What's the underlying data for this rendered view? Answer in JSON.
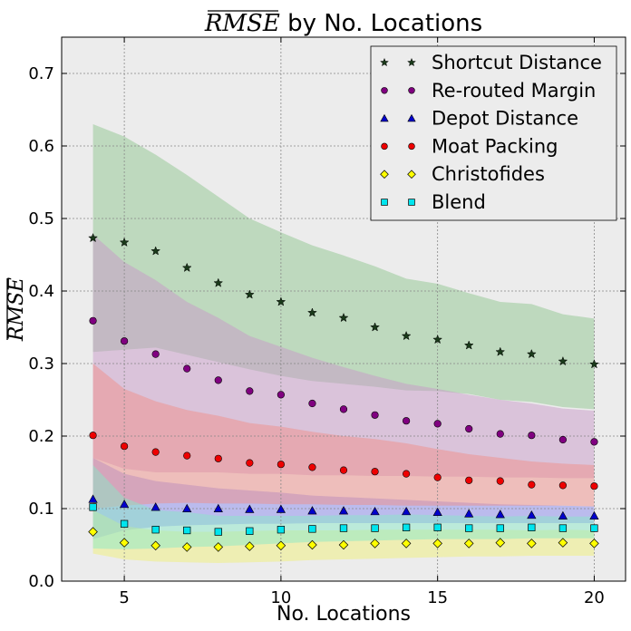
{
  "chart_data": {
    "type": "scatter",
    "title_math": "RMSE",
    "title_rest": " by No. Locations",
    "xlabel": "No. Locations",
    "ylabel": "RMSE",
    "xlim": [
      3,
      21
    ],
    "ylim": [
      0,
      0.75
    ],
    "xticks": [
      5,
      10,
      15,
      20
    ],
    "yticks": [
      0.0,
      0.1,
      0.2,
      0.3,
      0.4,
      0.5,
      0.6,
      0.7
    ],
    "grid": true,
    "legend_position": "top-right",
    "x": [
      4,
      5,
      6,
      7,
      8,
      9,
      10,
      11,
      12,
      13,
      14,
      15,
      16,
      17,
      18,
      19,
      20
    ],
    "series": [
      {
        "name": "Shortcut Distance",
        "marker": "star",
        "color": "#1a3a1a",
        "band_color": "#8fc58f",
        "values": [
          0.473,
          0.467,
          0.455,
          0.432,
          0.411,
          0.395,
          0.385,
          0.37,
          0.363,
          0.35,
          0.338,
          0.333,
          0.325,
          0.316,
          0.313,
          0.303,
          0.299
        ],
        "lower": [
          0.316,
          0.319,
          0.322,
          0.312,
          0.302,
          0.292,
          0.283,
          0.276,
          0.272,
          0.268,
          0.263,
          0.262,
          0.258,
          0.25,
          0.247,
          0.24,
          0.237
        ],
        "upper": [
          0.63,
          0.613,
          0.588,
          0.56,
          0.53,
          0.5,
          0.481,
          0.463,
          0.449,
          0.434,
          0.417,
          0.41,
          0.397,
          0.385,
          0.382,
          0.368,
          0.362
        ]
      },
      {
        "name": "Re-routed Margin",
        "marker": "circle",
        "color": "#800080",
        "band_color": "#c89ac8",
        "values": [
          0.359,
          0.331,
          0.313,
          0.293,
          0.277,
          0.262,
          0.257,
          0.245,
          0.237,
          0.229,
          0.221,
          0.217,
          0.21,
          0.203,
          0.201,
          0.195,
          0.192
        ],
        "lower": [
          0.17,
          0.155,
          0.15,
          0.15,
          0.15,
          0.148,
          0.148,
          0.146,
          0.146,
          0.145,
          0.145,
          0.144,
          0.144,
          0.143,
          0.143,
          0.142,
          0.142
        ],
        "upper": [
          0.478,
          0.44,
          0.415,
          0.385,
          0.363,
          0.338,
          0.323,
          0.308,
          0.295,
          0.283,
          0.272,
          0.265,
          0.257,
          0.25,
          0.245,
          0.238,
          0.235
        ]
      },
      {
        "name": "Depot Distance",
        "marker": "triangle",
        "color": "#0000cc",
        "band_color": "#8a8aee",
        "values": [
          0.113,
          0.106,
          0.102,
          0.1,
          0.1,
          0.099,
          0.099,
          0.097,
          0.097,
          0.096,
          0.096,
          0.095,
          0.093,
          0.092,
          0.091,
          0.09,
          0.09
        ],
        "lower": [
          0.058,
          0.07,
          0.075,
          0.077,
          0.078,
          0.079,
          0.079,
          0.08,
          0.08,
          0.08,
          0.08,
          0.08,
          0.08,
          0.08,
          0.08,
          0.08,
          0.08
        ],
        "upper": [
          0.17,
          0.148,
          0.138,
          0.133,
          0.128,
          0.125,
          0.122,
          0.118,
          0.116,
          0.114,
          0.112,
          0.11,
          0.108,
          0.106,
          0.105,
          0.104,
          0.103
        ]
      },
      {
        "name": "Moat Packing",
        "marker": "circle",
        "color": "#ee0000",
        "band_color": "#f0908a",
        "values": [
          0.201,
          0.186,
          0.178,
          0.173,
          0.169,
          0.163,
          0.161,
          0.157,
          0.153,
          0.151,
          0.148,
          0.143,
          0.139,
          0.138,
          0.133,
          0.132,
          0.131
        ],
        "lower": [
          0.1,
          0.104,
          0.107,
          0.108,
          0.107,
          0.107,
          0.106,
          0.106,
          0.105,
          0.105,
          0.104,
          0.104,
          0.104,
          0.104,
          0.104,
          0.104,
          0.103
        ],
        "upper": [
          0.3,
          0.265,
          0.248,
          0.236,
          0.228,
          0.218,
          0.213,
          0.206,
          0.2,
          0.196,
          0.19,
          0.182,
          0.175,
          0.17,
          0.165,
          0.162,
          0.16
        ]
      },
      {
        "name": "Christofides",
        "marker": "diamond",
        "color": "#ffff00",
        "band_color": "#f0f07a",
        "values": [
          0.068,
          0.053,
          0.049,
          0.047,
          0.047,
          0.048,
          0.049,
          0.05,
          0.05,
          0.052,
          0.052,
          0.052,
          0.052,
          0.053,
          0.052,
          0.053,
          0.052
        ],
        "lower": [
          0.038,
          0.03,
          0.027,
          0.026,
          0.025,
          0.026,
          0.027,
          0.029,
          0.03,
          0.031,
          0.032,
          0.033,
          0.034,
          0.034,
          0.035,
          0.035,
          0.035
        ],
        "upper": [
          0.098,
          0.076,
          0.07,
          0.068,
          0.068,
          0.069,
          0.07,
          0.07,
          0.07,
          0.071,
          0.071,
          0.071,
          0.071,
          0.071,
          0.07,
          0.071,
          0.07
        ]
      },
      {
        "name": "Blend",
        "marker": "square",
        "color": "#00e5ee",
        "band_color": "#8ae8c8",
        "values": [
          0.102,
          0.079,
          0.071,
          0.07,
          0.068,
          0.069,
          0.071,
          0.072,
          0.073,
          0.073,
          0.074,
          0.074,
          0.073,
          0.073,
          0.074,
          0.073,
          0.073
        ],
        "lower": [
          0.045,
          0.044,
          0.045,
          0.047,
          0.048,
          0.05,
          0.052,
          0.054,
          0.055,
          0.056,
          0.057,
          0.058,
          0.058,
          0.058,
          0.059,
          0.059,
          0.059
        ],
        "upper": [
          0.16,
          0.115,
          0.098,
          0.095,
          0.09,
          0.09,
          0.09,
          0.09,
          0.091,
          0.091,
          0.092,
          0.091,
          0.09,
          0.089,
          0.09,
          0.089,
          0.089
        ]
      }
    ]
  }
}
